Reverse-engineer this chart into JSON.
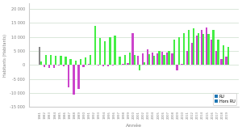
{
  "title": "",
  "xlabel": "Année",
  "ylabel": "Habitants (Habitants)",
  "years": [
    1981,
    1982,
    1983,
    1984,
    1985,
    1986,
    1987,
    1988,
    1989,
    1990,
    1991,
    1992,
    1993,
    1994,
    1995,
    1996,
    1997,
    1998,
    1999,
    2000,
    2001,
    2002,
    2003,
    2004,
    2005,
    2006,
    2007,
    2008,
    2009,
    2010,
    2011,
    2012,
    2013,
    2014,
    2015,
    2016,
    2017,
    2018,
    2019
  ],
  "RU": [
    6500,
    -800,
    -1000,
    -1000,
    -200,
    -500,
    -8000,
    -10500,
    -8500,
    -800,
    300,
    200,
    -300,
    -400,
    -500,
    -200,
    100,
    300,
    600,
    11500,
    3200,
    4200,
    5500,
    4500,
    4200,
    4800,
    4500,
    4200,
    -2000,
    500,
    5000,
    8000,
    10500,
    12500,
    13500,
    9000,
    5000,
    2000,
    3000
  ],
  "HorsRU": [
    1200,
    3500,
    3500,
    3200,
    3200,
    3000,
    2000,
    1500,
    2000,
    2800,
    3500,
    14000,
    9500,
    8500,
    10000,
    10500,
    3000,
    3500,
    4500,
    3500,
    -2000,
    1000,
    4000,
    3200,
    5000,
    3500,
    5000,
    9000,
    10000,
    11500,
    12500,
    13000,
    11500,
    11000,
    11000,
    12500,
    9000,
    7000,
    6500
  ],
  "color_RU": "#cc44cc",
  "color_HorsRU": "#44ee44",
  "color_RU_first": "#888888",
  "ylim": [
    -15000,
    22000
  ],
  "yticks": [
    -15000,
    -10000,
    -5000,
    0,
    5000,
    10000,
    15000,
    20000
  ],
  "legend_RU": "RU",
  "legend_HorsRU": "Hors RU",
  "bar_width": 0.38,
  "bg_color": "#ffffff",
  "grid_color": "#ccddcc"
}
